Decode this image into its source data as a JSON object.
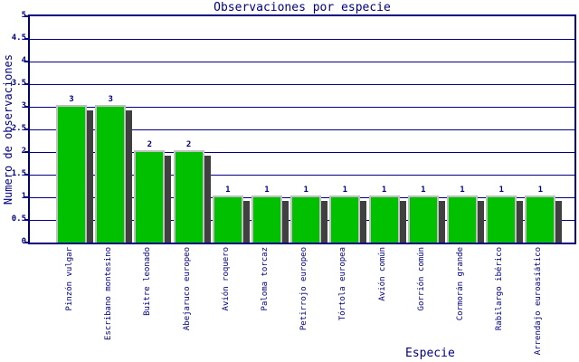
{
  "colors": {
    "axis": "#000080",
    "bar_fill": "#00C000",
    "bar_border": "#C0C0C0",
    "bar_shadow": "#404040",
    "background": "#FFFFFF"
  },
  "chart_data": {
    "type": "bar",
    "title": "Observaciones por especie",
    "xlabel": "Especie",
    "ylabel": "Numero de observaciones",
    "categories": [
      "Pinzón vulgar",
      "Escribano montesino",
      "Buitre leonado",
      "Abejaruco europeo",
      "Avión roquero",
      "Paloma torcaz",
      "Petirrojo europeo",
      "Tórtola europea",
      "Avión común",
      "Gorrión común",
      "Cormorán grande",
      "Rabilargo ibérico",
      "Arrendajo euroasiático"
    ],
    "values": [
      3,
      3,
      2,
      2,
      1,
      1,
      1,
      1,
      1,
      1,
      1,
      1,
      1
    ],
    "bar_labels": [
      "3",
      "3",
      "2",
      "2",
      "1",
      "1",
      "1",
      "1",
      "1",
      "1",
      "1",
      "1",
      "1"
    ],
    "ylim": [
      0,
      5
    ],
    "ytick_step": 0.5,
    "yticks": [
      "0",
      "0.5",
      "1",
      "1.5",
      "2",
      "2.5",
      "3",
      "3.5",
      "4",
      "4.5",
      "5"
    ],
    "grid": true,
    "legend": "none",
    "bar_style": "3d-shadow"
  }
}
